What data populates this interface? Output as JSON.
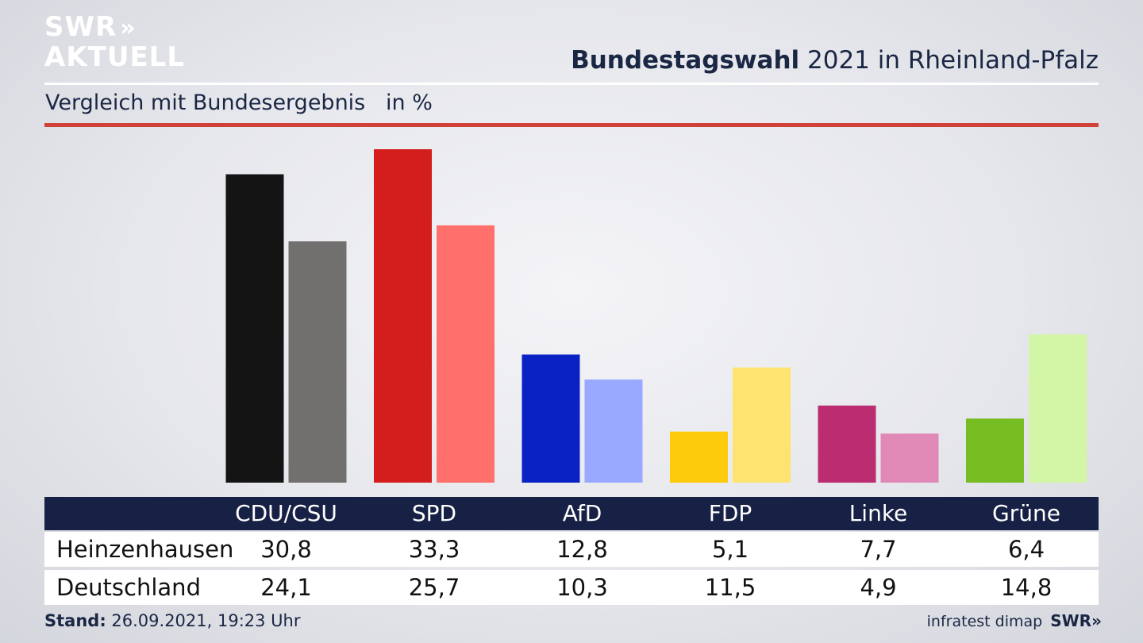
{
  "logo": {
    "line1": "SWR",
    "arrows": "»",
    "line2": "AKTUELL"
  },
  "header": {
    "title_bold": "Bundestagswahl",
    "title_rest": " 2021 in Rheinland-Pfalz",
    "subtitle": "Vergleich mit Bundesergebnis   in %"
  },
  "chart_data": {
    "type": "bar",
    "title": "Bundestagswahl 2021 in Rheinland-Pfalz",
    "subtitle": "Vergleich mit Bundesergebnis in %",
    "categories": [
      "CDU/CSU",
      "SPD",
      "AfD",
      "FDP",
      "Linke",
      "Grüne"
    ],
    "series": [
      {
        "name": "Heinzenhausen",
        "values": [
          30.8,
          33.3,
          12.8,
          5.1,
          7.7,
          6.4
        ],
        "colors": [
          "#141414",
          "#d41e1e",
          "#0a22c4",
          "#fdcb0c",
          "#bb2d70",
          "#76bd22"
        ]
      },
      {
        "name": "Deutschland",
        "values": [
          24.1,
          25.7,
          10.3,
          11.5,
          4.9,
          14.8
        ],
        "colors": [
          "#72706e",
          "#ff706c",
          "#99a9ff",
          "#fde36f",
          "#e088b6",
          "#d2f5a6"
        ]
      }
    ],
    "display_values": [
      [
        "30,8",
        "33,3",
        "12,8",
        "5,1",
        "7,7",
        "6,4"
      ],
      [
        "24,1",
        "25,7",
        "10,3",
        "11,5",
        "4,9",
        "14,8"
      ]
    ],
    "ylim": [
      0,
      33.3
    ],
    "grid": false,
    "legend": "table-below"
  },
  "footer": {
    "stand_label": "Stand:",
    "stand_value": " 26.09.2021, 19:23 Uhr",
    "source": "infratest dimap",
    "brand": "SWR",
    "brand_arrows": "»"
  }
}
